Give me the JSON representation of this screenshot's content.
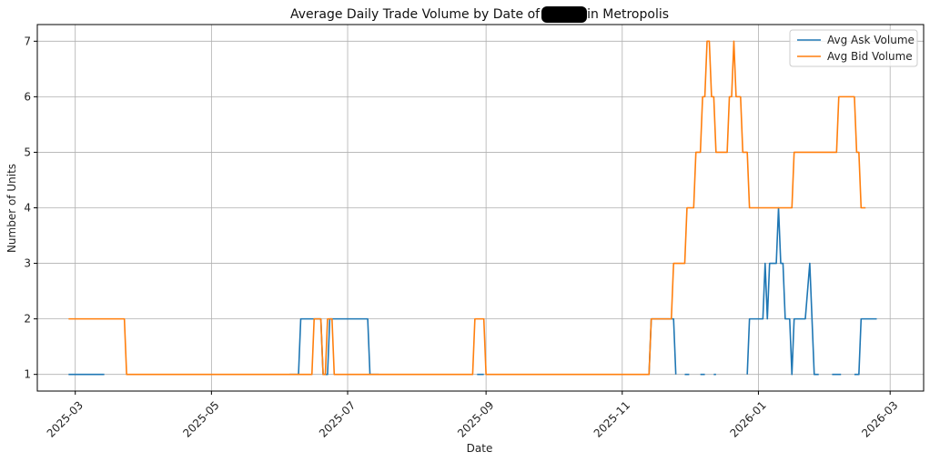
{
  "chart_data": {
    "type": "line",
    "title": "Average Daily Trade Volume by Date of ▇▇▇▇ in Metropolis",
    "xlabel": "Date",
    "ylabel": "Number of Units",
    "ylim": [
      0.7,
      7.3
    ],
    "yticks": [
      1,
      2,
      3,
      4,
      5,
      6,
      7
    ],
    "xrange": [
      "2025-02-12",
      "2026-03-16"
    ],
    "xticks": [
      "2025-03",
      "2025-05",
      "2025-07",
      "2025-09",
      "2025-11",
      "2026-01",
      "2026-03"
    ],
    "grid": true,
    "legend": "top-right",
    "series": [
      {
        "name": "Avg Ask Volume",
        "color": "#1f77b4",
        "segments": [
          [
            [
              "2025-02-26",
              1
            ],
            [
              "2025-03-14",
              1
            ]
          ],
          [
            [
              "2025-06-05",
              1
            ],
            [
              "2025-06-09",
              1
            ],
            [
              "2025-06-10",
              2
            ],
            [
              "2025-06-19",
              2
            ],
            [
              "2025-06-20",
              1
            ],
            [
              "2025-06-22",
              1
            ],
            [
              "2025-06-23",
              2
            ],
            [
              "2025-07-10",
              2
            ],
            [
              "2025-07-11",
              1
            ],
            [
              "2025-07-15",
              1
            ]
          ],
          [
            [
              "2025-08-28",
              1
            ],
            [
              "2025-08-31",
              1
            ]
          ],
          [
            [
              "2025-11-13",
              1
            ],
            [
              "2025-11-14",
              2
            ],
            [
              "2025-11-24",
              2
            ],
            [
              "2025-11-25",
              1
            ]
          ],
          [
            [
              "2025-11-29",
              1
            ],
            [
              "2025-12-01",
              1
            ]
          ],
          [
            [
              "2025-12-06",
              1
            ],
            [
              "2025-12-08",
              1
            ]
          ],
          [
            [
              "2025-12-12",
              1
            ],
            [
              "2025-12-13",
              1
            ]
          ],
          [
            [
              "2025-12-27",
              1
            ],
            [
              "2025-12-28",
              2
            ],
            [
              "2026-01-03",
              2
            ],
            [
              "2026-01-04",
              3
            ],
            [
              "2026-01-05",
              2
            ],
            [
              "2026-01-06",
              3
            ],
            [
              "2026-01-09",
              3
            ],
            [
              "2026-01-10",
              4
            ],
            [
              "2026-01-11",
              3
            ],
            [
              "2026-01-12",
              3
            ],
            [
              "2026-01-13",
              2
            ],
            [
              "2026-01-15",
              2
            ],
            [
              "2026-01-16",
              1
            ],
            [
              "2026-01-17",
              2
            ],
            [
              "2026-01-22",
              2
            ],
            [
              "2026-01-24",
              3
            ],
            [
              "2026-01-26",
              1
            ],
            [
              "2026-01-28",
              1
            ]
          ],
          [
            [
              "2026-02-03",
              1
            ],
            [
              "2026-02-07",
              1
            ]
          ],
          [
            [
              "2026-02-13",
              1
            ],
            [
              "2026-02-15",
              1
            ],
            [
              "2026-02-16",
              2
            ],
            [
              "2026-02-23",
              2
            ]
          ]
        ]
      },
      {
        "name": "Avg Bid Volume",
        "color": "#ff7f0e",
        "segments": [
          [
            [
              "2025-02-26",
              2
            ],
            [
              "2025-03-23",
              2
            ],
            [
              "2025-03-24",
              1
            ],
            [
              "2025-06-15",
              1
            ],
            [
              "2025-06-16",
              2
            ],
            [
              "2025-06-19",
              2
            ],
            [
              "2025-06-20",
              1
            ],
            [
              "2025-06-21",
              1
            ],
            [
              "2025-06-22",
              2
            ],
            [
              "2025-06-24",
              2
            ],
            [
              "2025-06-25",
              1
            ],
            [
              "2025-08-26",
              1
            ],
            [
              "2025-08-27",
              2
            ],
            [
              "2025-08-31",
              2
            ],
            [
              "2025-09-01",
              1
            ],
            [
              "2025-11-13",
              1
            ],
            [
              "2025-11-14",
              2
            ],
            [
              "2025-11-23",
              2
            ],
            [
              "2025-11-24",
              3
            ],
            [
              "2025-11-29",
              3
            ],
            [
              "2025-11-30",
              4
            ],
            [
              "2025-12-03",
              4
            ],
            [
              "2025-12-04",
              5
            ],
            [
              "2025-12-06",
              5
            ],
            [
              "2025-12-07",
              6
            ],
            [
              "2025-12-08",
              6
            ],
            [
              "2025-12-09",
              7
            ],
            [
              "2025-12-10",
              7
            ],
            [
              "2025-12-11",
              6
            ],
            [
              "2025-12-12",
              6
            ],
            [
              "2025-12-13",
              5
            ],
            [
              "2025-12-18",
              5
            ],
            [
              "2025-12-19",
              6
            ],
            [
              "2025-12-20",
              6
            ],
            [
              "2025-12-21",
              7
            ],
            [
              "2025-12-22",
              6
            ],
            [
              "2025-12-24",
              6
            ],
            [
              "2025-12-25",
              5
            ],
            [
              "2025-12-27",
              5
            ],
            [
              "2025-12-28",
              4
            ],
            [
              "2026-01-11",
              4
            ],
            [
              "2026-01-12",
              4
            ],
            [
              "2026-01-16",
              4
            ],
            [
              "2026-01-17",
              5
            ],
            [
              "2026-02-05",
              5
            ],
            [
              "2026-02-06",
              6
            ],
            [
              "2026-02-13",
              6
            ],
            [
              "2026-02-14",
              5
            ],
            [
              "2026-02-15",
              5
            ],
            [
              "2026-02-16",
              4
            ],
            [
              "2026-02-18",
              4
            ]
          ]
        ]
      }
    ]
  }
}
